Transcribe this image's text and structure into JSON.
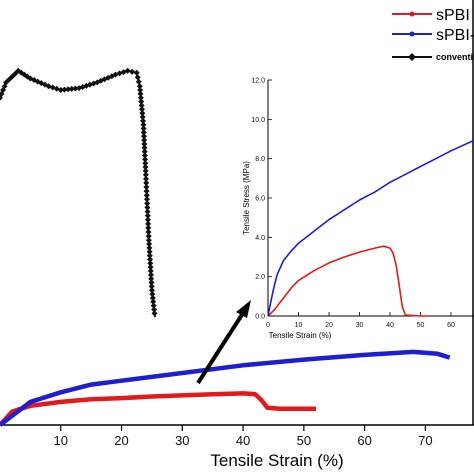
{
  "chart_data": [
    {
      "type": "line",
      "title": "",
      "xlabel": "Tensile Strain (%)",
      "ylabel": "",
      "xlim": [
        0,
        78
      ],
      "ylim": [
        0,
        110
      ],
      "grid": false,
      "legend": "top-right",
      "x_ticks": [
        "10",
        "20",
        "30",
        "40",
        "50",
        "60",
        "70"
      ],
      "series": [
        {
          "name": "sPBI",
          "color": "#e31a1c",
          "marker": "circle",
          "points": [
            [
              0,
              0
            ],
            [
              2,
              3.5
            ],
            [
              5,
              5
            ],
            [
              10,
              6
            ],
            [
              15,
              6.7
            ],
            [
              20,
              7
            ],
            [
              25,
              7.4
            ],
            [
              30,
              7.7
            ],
            [
              35,
              8
            ],
            [
              40,
              8.2
            ],
            [
              42,
              8
            ],
            [
              43,
              6.5
            ],
            [
              44,
              4.5
            ],
            [
              46,
              4.2
            ],
            [
              50,
              4.2
            ],
            [
              52,
              4.2
            ]
          ]
        },
        {
          "name": "sPBI-",
          "color": "#1f1fd1",
          "marker": "circle",
          "points": [
            [
              0,
              0
            ],
            [
              5,
              6
            ],
            [
              10,
              8.5
            ],
            [
              15,
              10.5
            ],
            [
              20,
              11.5
            ],
            [
              30,
              13.5
            ],
            [
              40,
              15.5
            ],
            [
              50,
              17
            ],
            [
              60,
              18.2
            ],
            [
              65,
              18.7
            ],
            [
              68,
              19
            ],
            [
              72,
              18.5
            ],
            [
              74,
              17.5
            ]
          ]
        },
        {
          "name": "conventi",
          "color": "#111111",
          "marker": "diamond",
          "points": [
            [
              0,
              85
            ],
            [
              1,
              89
            ],
            [
              3,
              92
            ],
            [
              5,
              90
            ],
            [
              8,
              88
            ],
            [
              10,
              87
            ],
            [
              13,
              87.5
            ],
            [
              16,
              89
            ],
            [
              19,
              91
            ],
            [
              21,
              92
            ],
            [
              22.5,
              91.5
            ],
            [
              23,
              88
            ],
            [
              23.6,
              78
            ],
            [
              24,
              65
            ],
            [
              24.5,
              48
            ],
            [
              25,
              35
            ],
            [
              25.5,
              28
            ]
          ]
        }
      ]
    },
    {
      "type": "line",
      "title": "",
      "xlabel": "Tensile Strain (%)",
      "ylabel": "Tensile Stress (MPa)",
      "xlim": [
        0,
        70
      ],
      "ylim": [
        0,
        12
      ],
      "grid": false,
      "x_ticks": [
        "0",
        "10",
        "20",
        "30",
        "40",
        "50",
        "60"
      ],
      "y_ticks": [
        "0.0",
        "2.0",
        "4.0",
        "6.0",
        "8.0",
        "10.0",
        "12.0"
      ],
      "series": [
        {
          "name": "sPBI",
          "color": "#e31a1c",
          "points": [
            [
              0,
              0
            ],
            [
              2,
              0.3
            ],
            [
              4,
              0.7
            ],
            [
              6,
              1.1
            ],
            [
              8,
              1.5
            ],
            [
              10,
              1.8
            ],
            [
              15,
              2.3
            ],
            [
              20,
              2.7
            ],
            [
              25,
              3
            ],
            [
              30,
              3.25
            ],
            [
              35,
              3.45
            ],
            [
              38,
              3.55
            ],
            [
              40,
              3.45
            ],
            [
              41,
              3.2
            ],
            [
              42,
              2.6
            ],
            [
              43,
              1.6
            ],
            [
              44,
              0.5
            ],
            [
              45,
              0.05
            ],
            [
              50,
              0
            ],
            [
              53,
              0
            ]
          ]
        },
        {
          "name": "sPBI-",
          "color": "#1f1fd1",
          "points": [
            [
              0,
              0
            ],
            [
              1,
              0.8
            ],
            [
              2,
              1.5
            ],
            [
              3,
              2.1
            ],
            [
              5,
              2.8
            ],
            [
              7,
              3.2
            ],
            [
              10,
              3.7
            ],
            [
              15,
              4.3
            ],
            [
              20,
              4.9
            ],
            [
              25,
              5.4
            ],
            [
              30,
              5.9
            ],
            [
              35,
              6.3
            ],
            [
              40,
              6.8
            ],
            [
              45,
              7.2
            ],
            [
              50,
              7.6
            ],
            [
              55,
              8
            ],
            [
              60,
              8.4
            ],
            [
              65,
              8.75
            ],
            [
              70,
              9.1
            ]
          ]
        }
      ]
    }
  ]
}
